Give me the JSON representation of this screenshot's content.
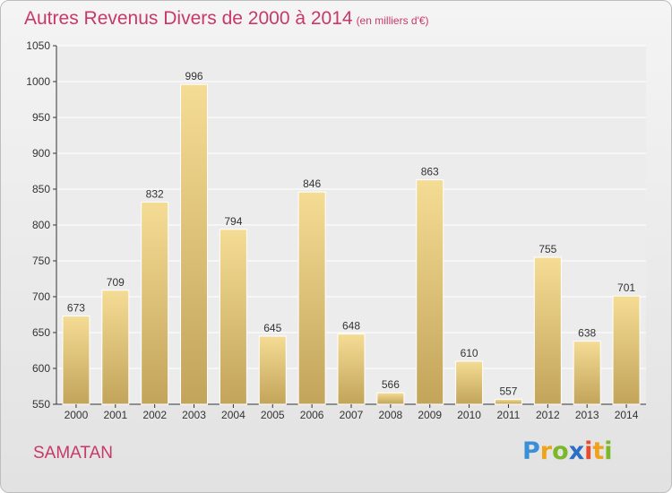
{
  "title": {
    "main": "Autres Revenus Divers de 2000 à 2014",
    "unit": "(en milliers d'€)"
  },
  "location": "SAMATAN",
  "logo": {
    "text": "Proxiti",
    "letters": [
      "P",
      "r",
      "o",
      "x",
      "i",
      "t",
      "i"
    ],
    "colors": [
      "#3a8fd6",
      "#f0a21a",
      "#7ab829",
      "#2a6fc4",
      "#e84a2a",
      "#f0a21a",
      "#7ab829"
    ]
  },
  "colors": {
    "accent": "#c8386a",
    "bar_top": "#f5dc94",
    "bar_bottom": "#c2a45a",
    "bar_border": "#ffffff"
  },
  "chart_data": {
    "type": "bar",
    "title": "Autres Revenus Divers de 2000 à 2014",
    "subtitle": "(en milliers d'€)",
    "categories": [
      "2000",
      "2001",
      "2002",
      "2003",
      "2004",
      "2005",
      "2006",
      "2007",
      "2008",
      "2009",
      "2010",
      "2011",
      "2012",
      "2013",
      "2014"
    ],
    "values": [
      673,
      709,
      832,
      996,
      794,
      645,
      846,
      648,
      566,
      863,
      610,
      557,
      755,
      638,
      701
    ],
    "xlabel": "",
    "ylabel": "",
    "ylim": [
      550,
      1050
    ],
    "yticks": [
      550,
      600,
      650,
      700,
      750,
      800,
      850,
      900,
      950,
      1000,
      1050
    ],
    "grid": true,
    "data_labels": true
  }
}
